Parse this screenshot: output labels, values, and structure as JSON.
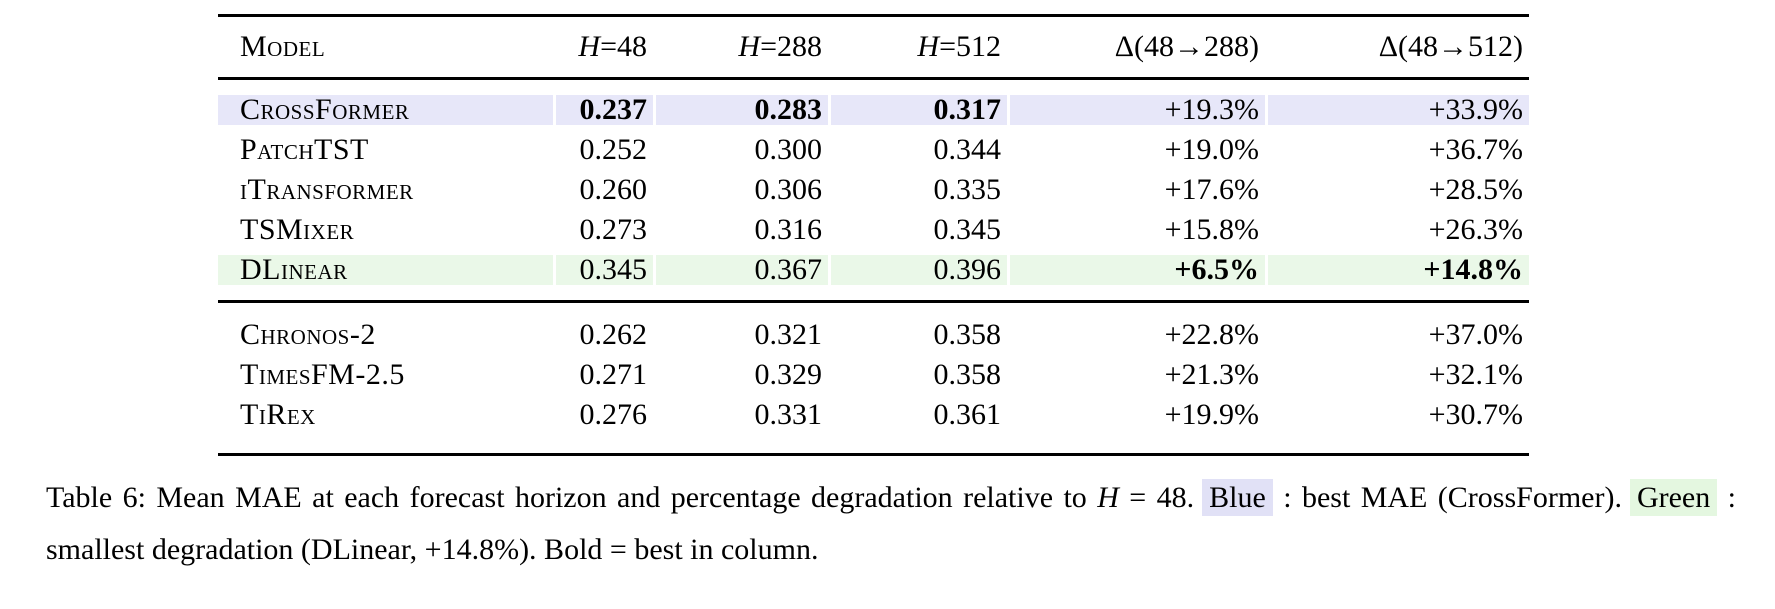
{
  "table": {
    "header": {
      "model": "Model",
      "h48": {
        "var": "H",
        "rest": "=48"
      },
      "h288": {
        "var": "H",
        "rest": "=288"
      },
      "h512": {
        "var": "H",
        "rest": "=512"
      },
      "d288": "Δ(48→288)",
      "d512": "Δ(48→512)"
    },
    "rows": [
      {
        "model": "CrossFormer",
        "h48": "0.237",
        "h288": "0.283",
        "h512": "0.317",
        "d288": "+19.3%",
        "d512": "+33.9%",
        "highlight": "blue",
        "bold_cells": "h48,h288,h512"
      },
      {
        "model": "PatchTST",
        "h48": "0.252",
        "h288": "0.300",
        "h512": "0.344",
        "d288": "+19.0%",
        "d512": "+36.7%",
        "highlight": "",
        "bold_cells": ""
      },
      {
        "model": "iTransformer",
        "h48": "0.260",
        "h288": "0.306",
        "h512": "0.335",
        "d288": "+17.6%",
        "d512": "+28.5%",
        "highlight": "",
        "bold_cells": ""
      },
      {
        "model": "TSMixer",
        "h48": "0.273",
        "h288": "0.316",
        "h512": "0.345",
        "d288": "+15.8%",
        "d512": "+26.3%",
        "highlight": "",
        "bold_cells": ""
      },
      {
        "model": "DLinear",
        "h48": "0.345",
        "h288": "0.367",
        "h512": "0.396",
        "d288": "+6.5%",
        "d512": "+14.8%",
        "highlight": "green",
        "bold_cells": "d288,d512"
      },
      {
        "model": "Chronos-2",
        "h48": "0.262",
        "h288": "0.321",
        "h512": "0.358",
        "d288": "+22.8%",
        "d512": "+37.0%",
        "highlight": "",
        "bold_cells": ""
      },
      {
        "model": "TimesFM-2.5",
        "h48": "0.271",
        "h288": "0.329",
        "h512": "0.358",
        "d288": "+21.3%",
        "d512": "+32.1%",
        "highlight": "",
        "bold_cells": ""
      },
      {
        "model": "TiRex",
        "h48": "0.276",
        "h288": "0.331",
        "h512": "0.361",
        "d288": "+19.9%",
        "d512": "+30.7%",
        "highlight": "",
        "bold_cells": ""
      }
    ],
    "colors": {
      "blue_row": "#e7e7f9",
      "green_row": "#eaf8e8"
    }
  },
  "caption": {
    "prefix": "Table 6: Mean MAE at each forecast horizon and percentage degradation relative to ",
    "h_var": "H",
    "h_rest": " = 48.",
    "blue_label": "Blue",
    "blue_text": " : best MAE (CrossFormer).",
    "green_label": "Green",
    "green_text": " : smallest degradation (DLinear, +14.8%). Bold = best in column."
  }
}
